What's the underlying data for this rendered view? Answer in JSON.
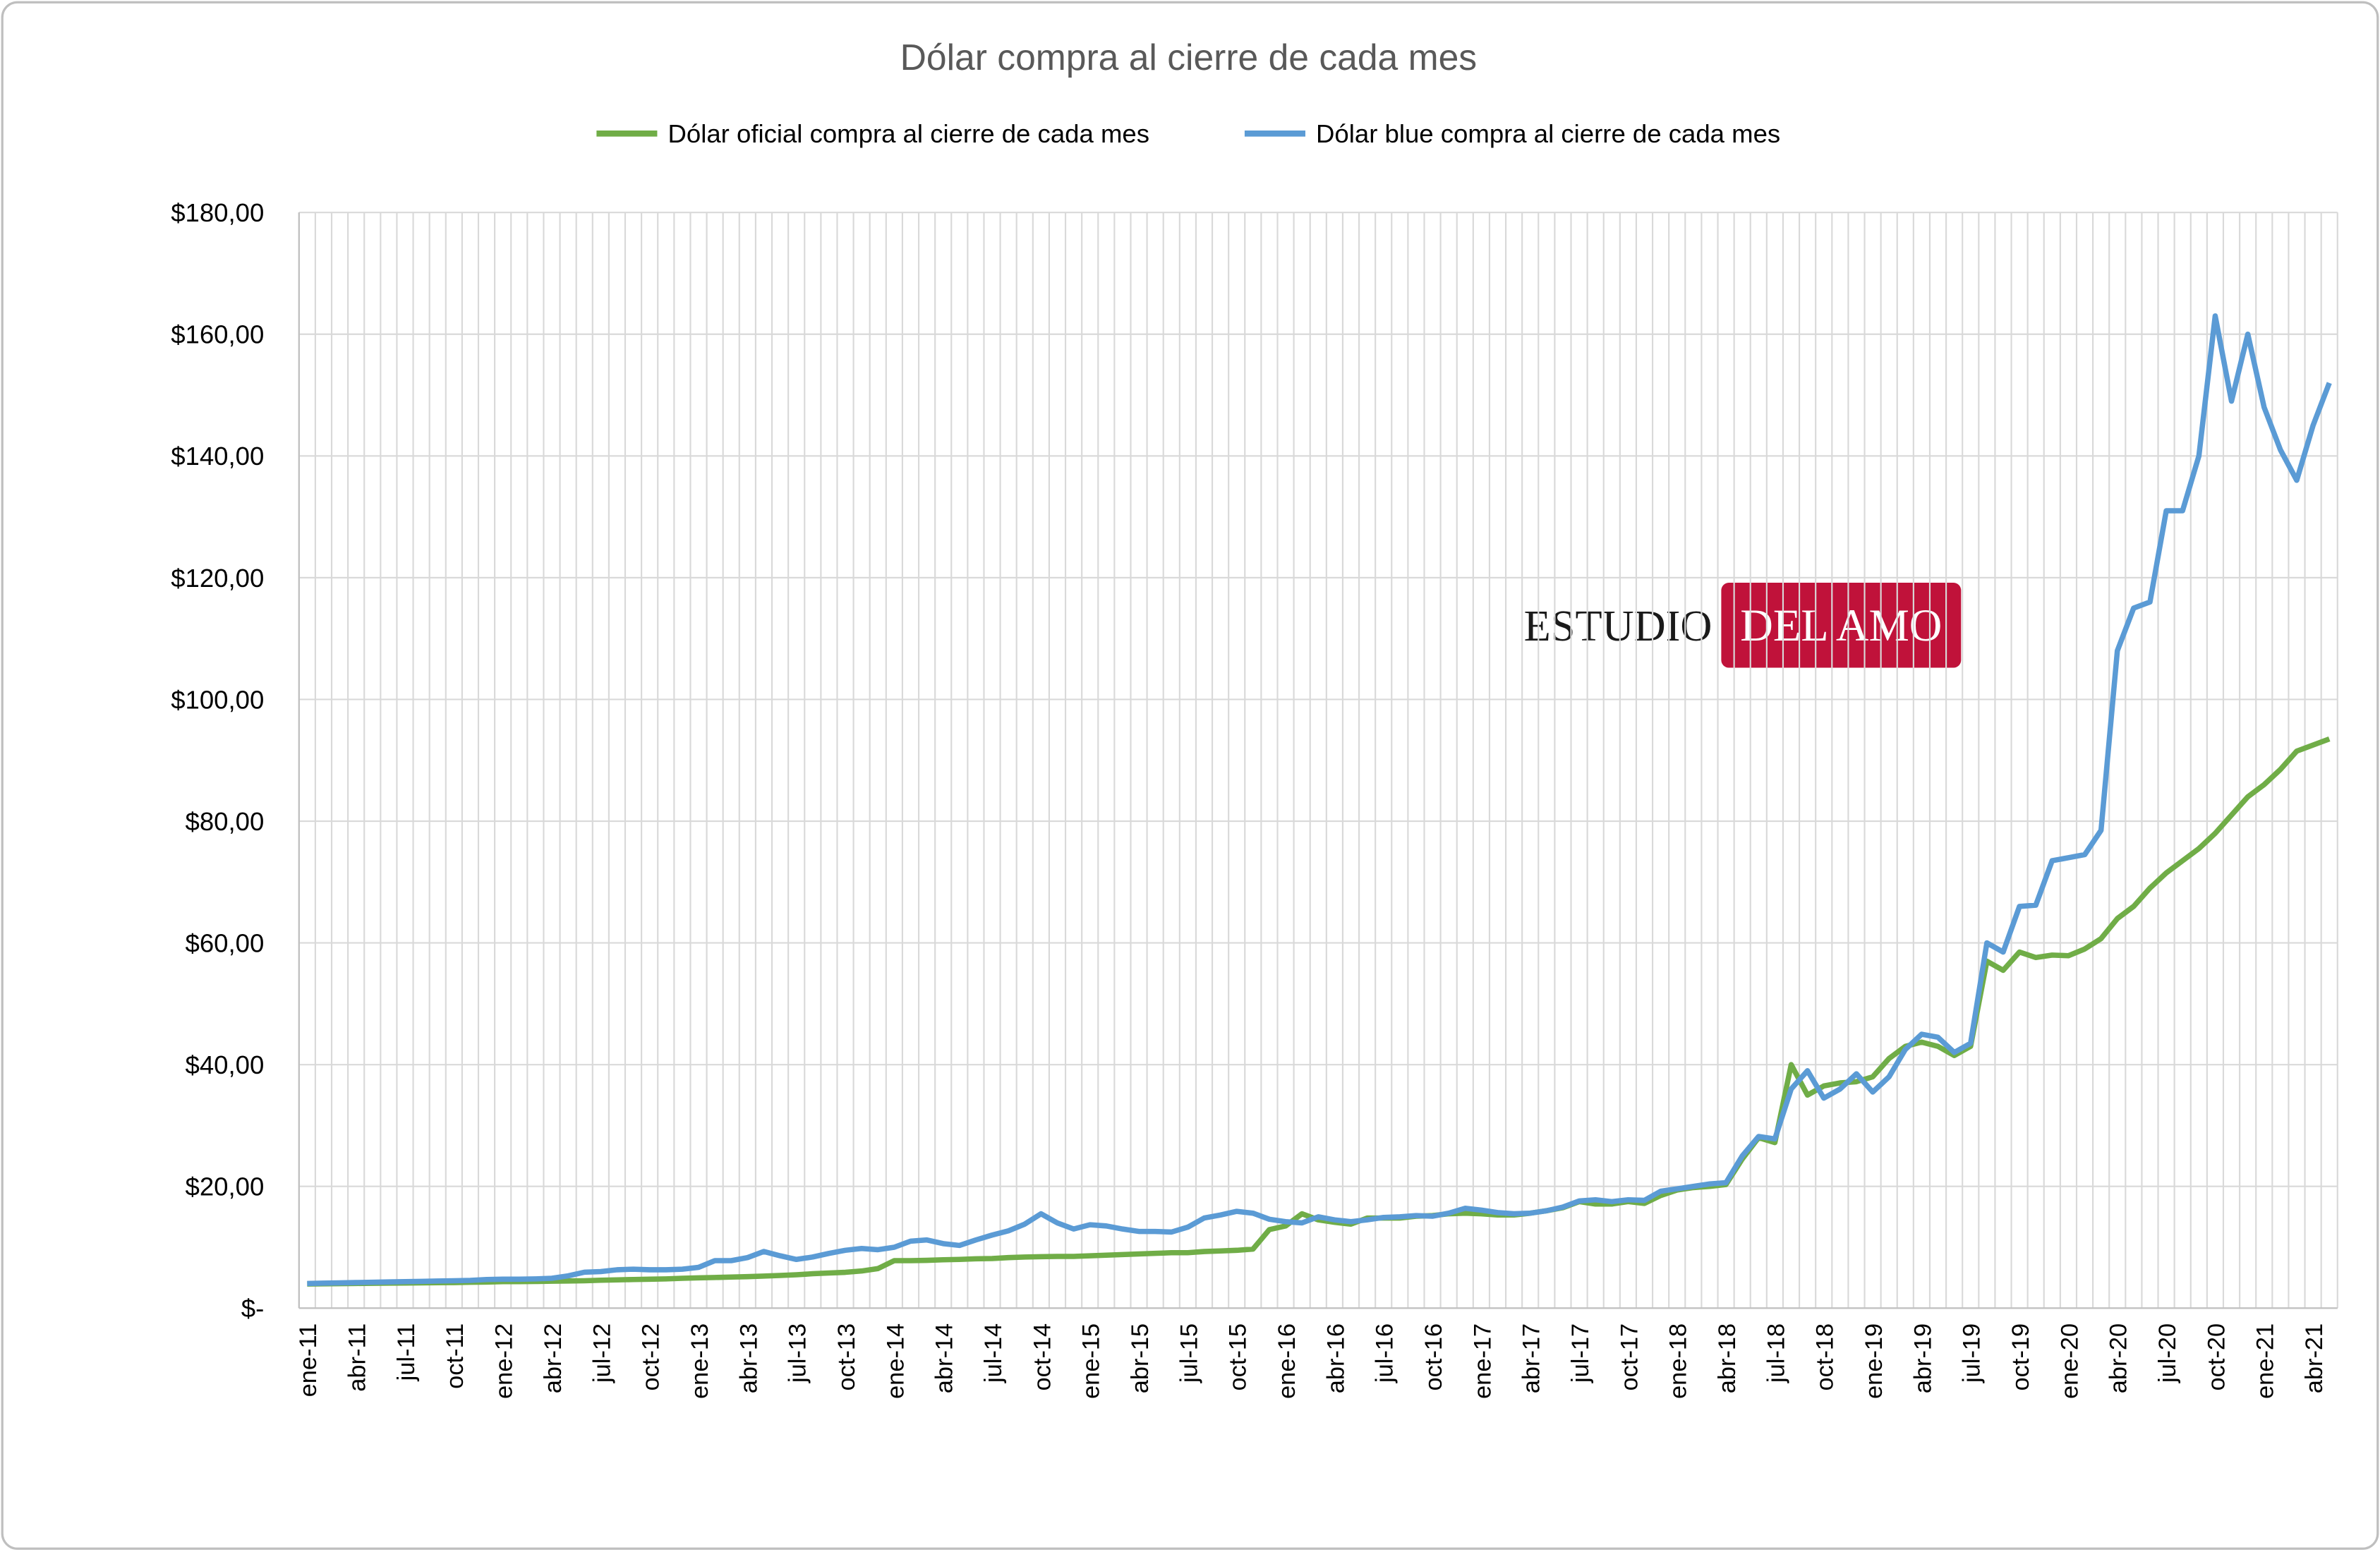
{
  "chart_data": {
    "type": "line",
    "title": "Dólar compra al cierre de cada mes",
    "logo": {
      "left": "ESTUDIO",
      "right": "DEL AMO"
    },
    "legend": "top",
    "grid": true,
    "categories": [
      "ene-11",
      null,
      null,
      "abr-11",
      null,
      null,
      "jul-11",
      null,
      null,
      "oct-11",
      null,
      null,
      "ene-12",
      null,
      null,
      "abr-12",
      null,
      null,
      "jul-12",
      null,
      null,
      "oct-12",
      null,
      null,
      "ene-13",
      null,
      null,
      "abr-13",
      null,
      null,
      "jul-13",
      null,
      null,
      "oct-13",
      null,
      null,
      "ene-14",
      null,
      null,
      "abr-14",
      null,
      null,
      "jul-14",
      null,
      null,
      "oct-14",
      null,
      null,
      "ene-15",
      null,
      null,
      "abr-15",
      null,
      null,
      "jul-15",
      null,
      null,
      "oct-15",
      null,
      null,
      "ene-16",
      null,
      null,
      "abr-16",
      null,
      null,
      "jul-16",
      null,
      null,
      "oct-16",
      null,
      null,
      "ene-17",
      null,
      null,
      "abr-17",
      null,
      null,
      "jul-17",
      null,
      null,
      "oct-17",
      null,
      null,
      "ene-18",
      null,
      null,
      "abr-18",
      null,
      null,
      "jul-18",
      null,
      null,
      "oct-18",
      null,
      null,
      "ene-19",
      null,
      null,
      "abr-19",
      null,
      null,
      "jul-19",
      null,
      null,
      "oct-19",
      null,
      null,
      "ene-20",
      null,
      null,
      "abr-20",
      null,
      null,
      "jul-20",
      null,
      null,
      "oct-20",
      null,
      null,
      "ene-21",
      null,
      null,
      "abr-21",
      null
    ],
    "series": [
      {
        "name": "Dólar oficial compra al cierre de cada mes",
        "color": "#70ad47",
        "values": [
          3.97,
          3.99,
          4.02,
          4.05,
          4.08,
          4.1,
          4.12,
          4.15,
          4.18,
          4.2,
          4.25,
          4.28,
          4.35,
          4.35,
          4.38,
          4.42,
          4.46,
          4.5,
          4.58,
          4.64,
          4.7,
          4.75,
          4.8,
          4.9,
          4.97,
          5.03,
          5.1,
          5.17,
          5.26,
          5.36,
          5.48,
          5.65,
          5.77,
          5.88,
          6.1,
          6.5,
          7.8,
          7.8,
          7.85,
          7.95,
          8.0,
          8.1,
          8.15,
          8.3,
          8.4,
          8.45,
          8.5,
          8.5,
          8.6,
          8.7,
          8.8,
          8.9,
          9.0,
          9.1,
          9.1,
          9.3,
          9.4,
          9.5,
          9.7,
          12.9,
          13.5,
          15.5,
          14.5,
          14.1,
          13.8,
          14.8,
          14.8,
          14.8,
          15.1,
          15.2,
          15.5,
          15.6,
          15.5,
          15.3,
          15.3,
          15.6,
          16.0,
          16.5,
          17.5,
          17.1,
          17.1,
          17.5,
          17.2,
          18.5,
          19.4,
          19.8,
          20.0,
          20.3,
          24.5,
          28.0,
          27.2,
          40.0,
          35.0,
          36.5,
          37.0,
          37.2,
          38.0,
          41.0,
          43.0,
          43.7,
          43.0,
          41.5,
          43.0,
          57.0,
          55.5,
          58.5,
          57.6,
          58.0,
          57.9,
          59.0,
          60.7,
          64.0,
          66.0,
          69.0,
          71.5,
          73.5,
          75.5,
          78.0,
          81.0,
          84.0,
          86.0,
          88.5,
          91.5,
          92.5,
          93.5
        ]
      },
      {
        "name": "Dólar blue compra al cierre de cada mes",
        "color": "#5b9bd5",
        "values": [
          4.05,
          4.1,
          4.15,
          4.2,
          4.25,
          4.3,
          4.35,
          4.4,
          4.45,
          4.5,
          4.55,
          4.7,
          4.75,
          4.75,
          4.8,
          4.9,
          5.3,
          5.9,
          6.0,
          6.3,
          6.4,
          6.3,
          6.3,
          6.4,
          6.7,
          7.8,
          7.8,
          8.3,
          9.3,
          8.6,
          8.0,
          8.4,
          9.0,
          9.5,
          9.8,
          9.6,
          10.0,
          11.0,
          11.2,
          10.6,
          10.3,
          11.2,
          12.0,
          12.7,
          13.8,
          15.5,
          14.0,
          13.0,
          13.7,
          13.5,
          13.0,
          12.6,
          12.6,
          12.5,
          13.3,
          14.8,
          15.3,
          15.9,
          15.6,
          14.6,
          14.2,
          14.0,
          15.0,
          14.5,
          14.2,
          14.5,
          14.9,
          15.0,
          15.2,
          15.1,
          15.6,
          16.4,
          16.1,
          15.7,
          15.5,
          15.6,
          16.0,
          16.6,
          17.6,
          17.8,
          17.5,
          17.8,
          17.7,
          19.2,
          19.6,
          20.0,
          20.4,
          20.6,
          25.0,
          28.2,
          27.8,
          36.0,
          39.0,
          34.5,
          36.0,
          38.5,
          35.5,
          38.0,
          42.5,
          45.0,
          44.5,
          42.0,
          43.5,
          60.0,
          58.5,
          66.0,
          66.2,
          73.5,
          74.0,
          74.5,
          78.5,
          108.0,
          115.0,
          116.0,
          131.0,
          131.0,
          140.0,
          163.0,
          149.0,
          160.0,
          148.0,
          141.0,
          136.0,
          145.0,
          152.0
        ]
      }
    ],
    "ylim": [
      0,
      180
    ],
    "yticks": [
      {
        "value": 0,
        "label": "$-"
      },
      {
        "value": 20,
        "label": "$20,00"
      },
      {
        "value": 40,
        "label": "$40,00"
      },
      {
        "value": 60,
        "label": "$60,00"
      },
      {
        "value": 80,
        "label": "$80,00"
      },
      {
        "value": 100,
        "label": "$100,00"
      },
      {
        "value": 120,
        "label": "$120,00"
      },
      {
        "value": 140,
        "label": "$140,00"
      },
      {
        "value": 160,
        "label": "$160,00"
      },
      {
        "value": 180,
        "label": "$180,00"
      }
    ]
  }
}
